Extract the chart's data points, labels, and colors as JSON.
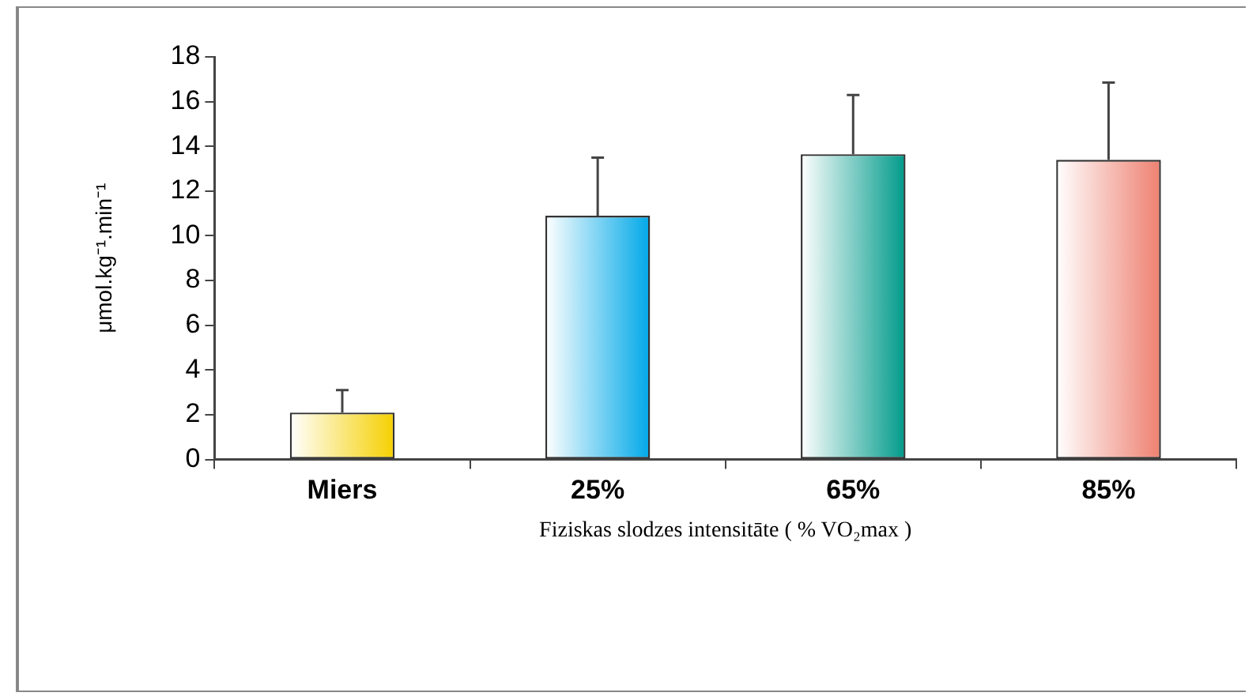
{
  "chart_data": {
    "type": "bar",
    "xlabel": "Fiziskas slodzes intensitāte ( % VO₂max )",
    "ylabel": "μmol.kg⁻¹.min⁻¹",
    "categories": [
      "Miers",
      "25%",
      "65%",
      "85%"
    ],
    "values": [
      2.1,
      10.9,
      13.65,
      13.4
    ],
    "errors": [
      [
        2.1,
        3.1
      ],
      [
        10.9,
        13.5
      ],
      [
        13.65,
        16.3
      ],
      [
        13.4,
        16.85
      ]
    ],
    "colors": [
      "#f5d000",
      "#00a8e8",
      "#009a8a",
      "#ee8070"
    ],
    "ylim": [
      0,
      18
    ],
    "yticks": [
      0,
      2,
      4,
      6,
      8,
      10,
      12,
      14,
      16,
      18
    ],
    "grid": false,
    "legend": false
  }
}
